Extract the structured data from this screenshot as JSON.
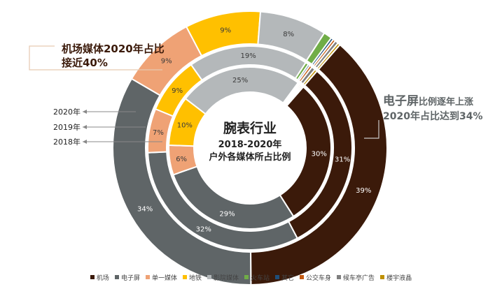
{
  "center": {
    "line1": "腕表行业",
    "line2": "2018-2020年",
    "line3": "户外各媒体所占比例"
  },
  "callouts": {
    "left_line1": "机场媒体2020年占比",
    "left_line2": "接近40%",
    "right_big": "电子屏",
    "right_small": "比例逐年上涨",
    "right_line2": "2020年占比达到34%"
  },
  "ring_labels": [
    "2020年",
    "2019年",
    "2018年"
  ],
  "colors": {
    "机场": "#3b1a0a",
    "电子屏": "#5f6567",
    "单一媒体": "#efa275",
    "地铁": "#ffc000",
    "影院媒体": "#b4b8ba",
    "火车站": "#70ad47",
    "其它": "#1f4e79",
    "公交车身": "#c55a11",
    "候车亭广告": "#7f7f7f",
    "楼宇液晶": "#bf9000"
  },
  "chart_data": {
    "type": "donut",
    "title": "腕表行业 2018-2020年 户外各媒体所占比例",
    "categories": [
      "机场",
      "电子屏",
      "单一媒体",
      "地铁",
      "影院媒体",
      "火车站",
      "其它",
      "公交车身",
      "候车亭广告",
      "楼宇液晶"
    ],
    "series": [
      {
        "name": "2020年",
        "values": [
          39,
          34,
          9,
          9,
          8,
          1,
          0.3,
          0.3,
          0.4,
          0.3
        ]
      },
      {
        "name": "2019年",
        "values": [
          31,
          32,
          7,
          9,
          19,
          0.5,
          0.3,
          0.4,
          0.6,
          0.4
        ]
      },
      {
        "name": "2018年",
        "values": [
          30,
          29,
          6,
          10,
          25,
          0.2,
          0.2,
          0.3,
          0.3,
          0.3
        ]
      }
    ],
    "label_values": {
      "2020年": [
        "39%",
        "34%",
        "9%",
        "9%",
        "8%",
        "",
        "",
        "",
        "",
        ""
      ],
      "2019年": [
        "31%",
        "32%",
        "7%",
        "9%",
        "19%",
        "",
        "",
        "",
        "",
        ""
      ],
      "2018年": [
        "30%",
        "29%",
        "6%",
        "10%",
        "25%",
        "",
        "",
        "",
        "",
        ""
      ]
    },
    "legend_position": "bottom"
  }
}
